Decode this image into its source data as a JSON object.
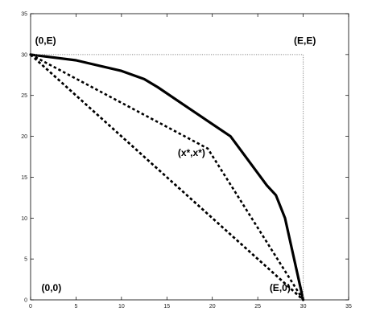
{
  "chart_data": {
    "type": "line",
    "title": "",
    "xlabel": "",
    "ylabel": "",
    "xlim": [
      0,
      35
    ],
    "ylim": [
      0,
      35
    ],
    "x_ticks": [
      0,
      5,
      10,
      15,
      20,
      25,
      30,
      35
    ],
    "y_ticks": [
      0,
      5,
      10,
      15,
      20,
      25,
      30,
      35
    ],
    "grid": false,
    "series": [
      {
        "style": "solid-thick",
        "color": "#000000",
        "points": [
          [
            0,
            30
          ],
          [
            5,
            29.3
          ],
          [
            10,
            28
          ],
          [
            12.5,
            27
          ],
          [
            14,
            26
          ],
          [
            18,
            23
          ],
          [
            22,
            20
          ],
          [
            26,
            14
          ],
          [
            27,
            12.8
          ],
          [
            28,
            10
          ],
          [
            29,
            5
          ],
          [
            30,
            0
          ]
        ]
      },
      {
        "style": "dotted",
        "color": "#000000",
        "points": [
          [
            0,
            30
          ],
          [
            19.5,
            18.5
          ],
          [
            30,
            0
          ]
        ]
      },
      {
        "style": "dotted",
        "color": "#000000",
        "points": [
          [
            0,
            30
          ],
          [
            30,
            0
          ]
        ]
      },
      {
        "style": "dotted",
        "color": "#000000",
        "points": [
          [
            0,
            30
          ],
          [
            26.5,
            3.5
          ],
          [
            30,
            0
          ]
        ]
      },
      {
        "style": "dotted-thin-gray",
        "color": "#888888",
        "points": [
          [
            0,
            30
          ],
          [
            30,
            30
          ],
          [
            30,
            0
          ]
        ]
      }
    ],
    "annotations": [
      {
        "text": "(0,E)",
        "x": 0.5,
        "y": 31.3,
        "anchor": "start"
      },
      {
        "text": "(E,E)",
        "x": 31.4,
        "y": 31.3,
        "anchor": "end"
      },
      {
        "text": "(x*,x*)",
        "x": 16.2,
        "y": 17.6,
        "anchor": "start"
      },
      {
        "text": "(0,0)",
        "x": 1.2,
        "y": 1.1,
        "anchor": "start"
      },
      {
        "text": "(E,0)",
        "x": 26.3,
        "y": 1.1,
        "anchor": "start"
      }
    ]
  }
}
